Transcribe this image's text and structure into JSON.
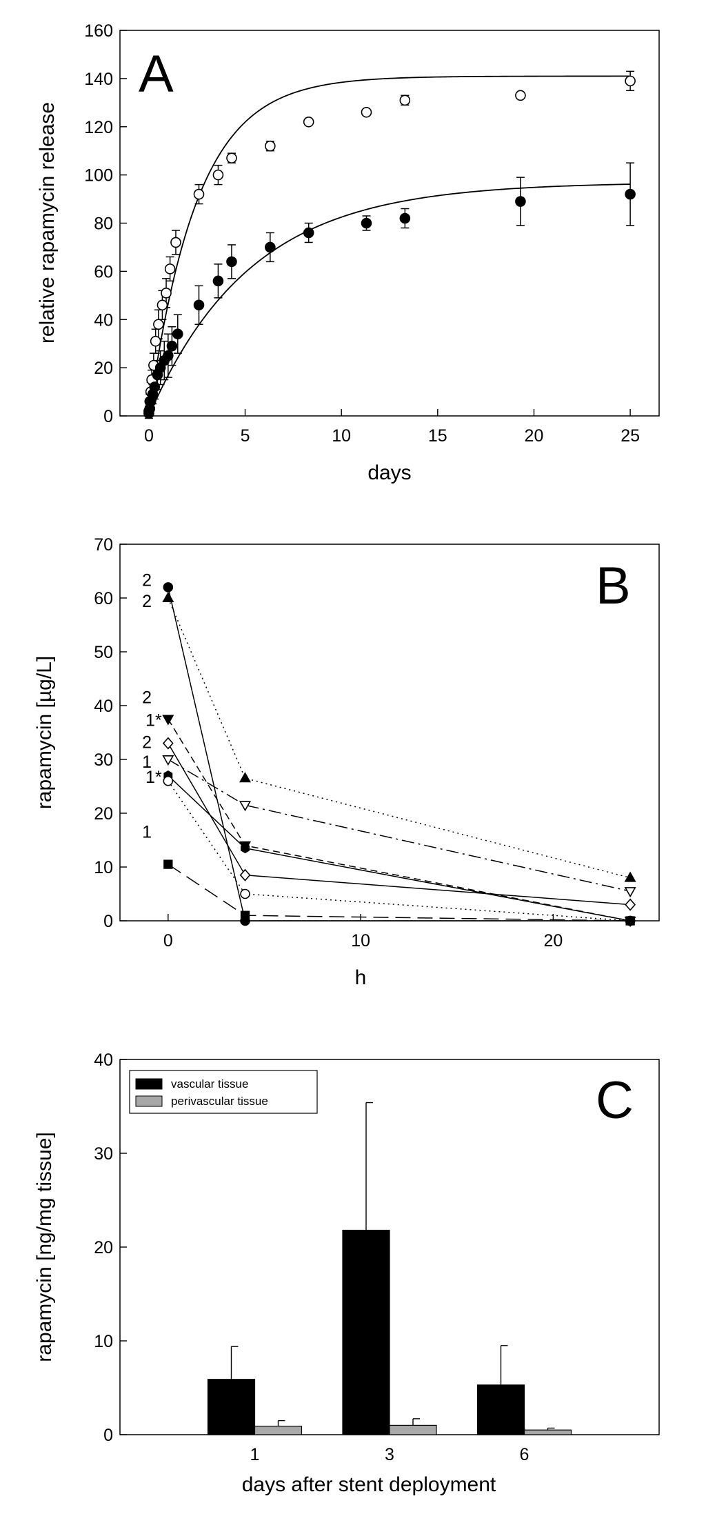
{
  "chart_data": [
    {
      "panel": "A",
      "type": "scatter",
      "panel_label": "A",
      "xlabel": "days",
      "ylabel": "relative rapamycin release",
      "xlim": [
        -1.5,
        26.5
      ],
      "ylim": [
        0,
        160
      ],
      "xticks": [
        0,
        5,
        10,
        15,
        20,
        25
      ],
      "yticks": [
        0,
        20,
        40,
        60,
        80,
        100,
        120,
        140,
        160
      ],
      "series": [
        {
          "name": "open circles",
          "marker": "circle-open",
          "fit": {
            "a": 141,
            "k": 0.4
          },
          "x": [
            0,
            0.05,
            0.1,
            0.15,
            0.25,
            0.35,
            0.5,
            0.7,
            0.9,
            1.1,
            1.4,
            2.6,
            3.6,
            4.3,
            6.3,
            8.3,
            11.3,
            13.3,
            19.3,
            25
          ],
          "y": [
            2,
            6,
            10,
            15,
            21,
            31,
            38,
            46,
            51,
            61,
            72,
            92,
            100,
            107,
            112,
            122,
            126,
            131,
            133,
            139
          ],
          "err": [
            2,
            3,
            4,
            4,
            5,
            5,
            6,
            6,
            6,
            5,
            5,
            4,
            4,
            2,
            2,
            1,
            1,
            2,
            1,
            4
          ]
        },
        {
          "name": "filled circles",
          "marker": "circle-filled",
          "fit": {
            "a": 97,
            "k": 0.19
          },
          "x": [
            0,
            0.05,
            0.1,
            0.2,
            0.3,
            0.45,
            0.6,
            0.8,
            1.0,
            1.2,
            1.5,
            2.6,
            3.6,
            4.3,
            6.3,
            8.3,
            11.3,
            13.3,
            19.3,
            25
          ],
          "y": [
            1,
            3,
            6,
            9,
            12,
            17,
            20,
            23,
            25,
            29,
            34,
            46,
            56,
            64,
            70,
            76,
            80,
            82,
            89,
            92
          ],
          "err": [
            2,
            2,
            3,
            4,
            5,
            6,
            7,
            8,
            9,
            8,
            8,
            8,
            7,
            7,
            6,
            4,
            3,
            4,
            10,
            13
          ]
        }
      ]
    },
    {
      "panel": "B",
      "type": "line",
      "panel_label": "B",
      "xlabel": "h",
      "ylabel": "rapamycin [µg/L]",
      "xlim": [
        -2.5,
        25.5
      ],
      "ylim": [
        0,
        70
      ],
      "xticks": [
        0,
        10,
        20
      ],
      "yticks": [
        0,
        10,
        20,
        30,
        40,
        50,
        60,
        70
      ],
      "x": [
        0,
        4,
        24
      ],
      "series": [
        {
          "name": "filled circle",
          "marker": "circle-filled",
          "dash": "solid",
          "values": [
            62,
            0,
            0
          ]
        },
        {
          "name": "filled triangle up",
          "marker": "triangle-up-filled",
          "dash": "dotted",
          "values": [
            60,
            26.5,
            8
          ]
        },
        {
          "name": "filled triangle down",
          "marker": "triangle-down-filled",
          "dash": "shortdash",
          "values": [
            37.5,
            14,
            0
          ]
        },
        {
          "name": "open diamond",
          "marker": "diamond-open",
          "dash": "solid",
          "values": [
            33,
            8.5,
            3
          ]
        },
        {
          "name": "open triangle down",
          "marker": "triangle-down-open",
          "dash": "dashdot",
          "values": [
            30,
            21.5,
            5.5
          ]
        },
        {
          "name": "filled hexagon",
          "marker": "hexagon-filled",
          "dash": "solid",
          "values": [
            27,
            13.5,
            0
          ]
        },
        {
          "name": "open circle",
          "marker": "circle-open",
          "dash": "dotted",
          "values": [
            26,
            5,
            0
          ]
        },
        {
          "name": "filled square",
          "marker": "square-filled",
          "dash": "longdash",
          "values": [
            10.5,
            1,
            0
          ]
        }
      ],
      "annotations": [
        {
          "text": "2",
          "x": -1.1,
          "y": 63.4
        },
        {
          "text": "2",
          "x": -1.1,
          "y": 59.5
        },
        {
          "text": "2",
          "x": -1.1,
          "y": 41.6
        },
        {
          "text": "1*",
          "x": -0.75,
          "y": 37.4
        },
        {
          "text": "2",
          "x": -1.1,
          "y": 33.3
        },
        {
          "text": "1",
          "x": -1.1,
          "y": 29.6
        },
        {
          "text": "1*",
          "x": -0.75,
          "y": 26.8
        },
        {
          "text": "1",
          "x": -1.1,
          "y": 16.6
        }
      ]
    },
    {
      "panel": "C",
      "type": "bar",
      "panel_label": "C",
      "xlabel": "days after stent deployment",
      "ylabel": "rapamycin [ng/mg tissue]",
      "ylim": [
        0,
        40
      ],
      "yticks": [
        0,
        10,
        20,
        30,
        40
      ],
      "categories": [
        "1",
        "3",
        "6"
      ],
      "series": [
        {
          "name": "vascular tissue",
          "color": "#000000",
          "values": [
            5.9,
            21.8,
            5.3
          ],
          "err": [
            3.5,
            13.6,
            4.2
          ]
        },
        {
          "name": "perivascular tissue",
          "color": "#a8a8a8",
          "values": [
            0.9,
            1.0,
            0.5
          ],
          "err": [
            0.6,
            0.7,
            0.2
          ]
        }
      ],
      "legend_position": "top-left"
    }
  ]
}
